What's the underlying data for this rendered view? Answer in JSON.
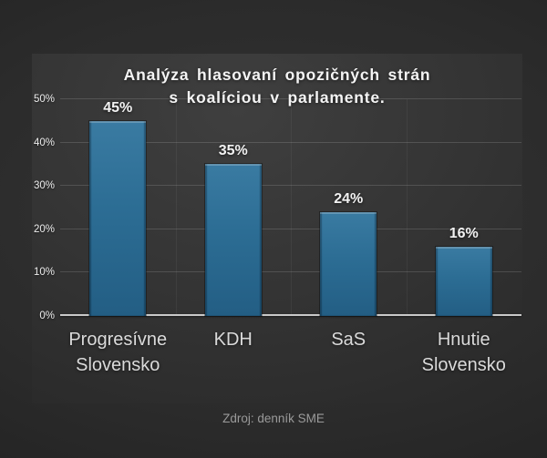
{
  "chart_data": {
    "type": "bar",
    "title": "Analýza hlasovaní opozičných strán s koalíciou v parlamente.",
    "title_lines": [
      "Analýza hlasovaní opozičných strán",
      "s koalíciou v parlamente."
    ],
    "categories": [
      "Progresívne Slovensko",
      "KDH",
      "SaS",
      "Hnutie Slovensko"
    ],
    "category_lines": [
      [
        "Progresívne",
        "Slovensko"
      ],
      [
        "KDH"
      ],
      [
        "SaS"
      ],
      [
        "Hnutie",
        "Slovensko"
      ]
    ],
    "values": [
      45,
      35,
      24,
      16
    ],
    "value_labels": [
      "45%",
      "35%",
      "24%",
      "16%"
    ],
    "ylim": [
      0,
      50
    ],
    "ytick_values": [
      0,
      10,
      20,
      30,
      40,
      50
    ],
    "ytick_labels": [
      "0%",
      "10%",
      "20%",
      "30%",
      "40%",
      "50%"
    ],
    "grid": "horizontal",
    "legend": "none",
    "bar_color": "#2c6d94",
    "background_color": "#2b2b2b",
    "panel_color": "#343434",
    "source": "Zdroj: denník SME"
  }
}
